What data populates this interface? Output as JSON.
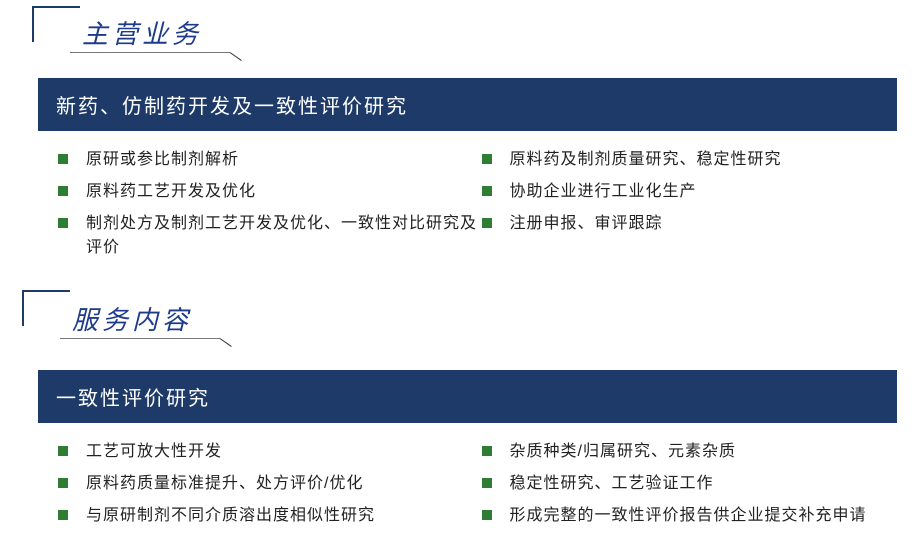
{
  "colors": {
    "accent_blue": "#1e3a68",
    "title_blue": "#1e3a8a",
    "bullet_green": "#2e7d32",
    "text": "#222222",
    "background": "#ffffff"
  },
  "typography": {
    "title_fontsize": 26,
    "bar_fontsize": 20,
    "bullet_fontsize": 16
  },
  "section1": {
    "title": "主营业务",
    "bar_title": "新药、仿制药开发及一致性评价研究",
    "left_items": [
      "原研或参比制剂解析",
      "原料药工艺开发及优化",
      "制剂处方及制剂工艺开发及优化、一致性对比研究及评价"
    ],
    "right_items": [
      "原料药及制剂质量研究、稳定性研究",
      "协助企业进行工业化生产",
      "注册申报、审评跟踪"
    ]
  },
  "section2": {
    "title": "服务内容",
    "bar_title": "一致性评价研究",
    "left_items": [
      "工艺可放大性开发",
      "原料药质量标准提升、处方评价/优化",
      "与原研制剂不同介质溶出度相似性研究"
    ],
    "right_items": [
      "杂质种类/归属研究、元素杂质",
      "稳定性研究、工艺验证工作",
      "形成完整的一致性评价报告供企业提交补充申请"
    ]
  }
}
